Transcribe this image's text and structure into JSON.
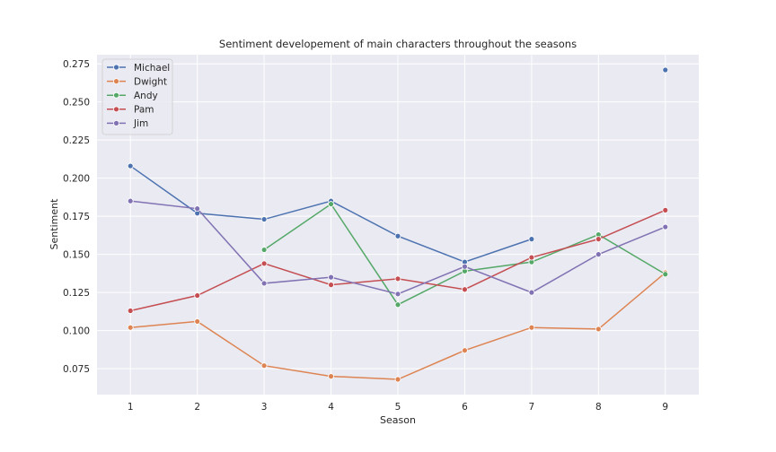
{
  "chart_data": {
    "type": "line",
    "title": "Sentiment developement of main characters throughout the seasons",
    "xlabel": "Season",
    "ylabel": "Sentiment",
    "x": [
      1,
      2,
      3,
      4,
      5,
      6,
      7,
      8,
      9
    ],
    "xlim": [
      0.5,
      9.5
    ],
    "ylim": [
      0.058,
      0.281
    ],
    "yticks": [
      "0.075",
      "0.100",
      "0.125",
      "0.150",
      "0.175",
      "0.200",
      "0.225",
      "0.250",
      "0.275"
    ],
    "ytick_values": [
      0.075,
      0.1,
      0.125,
      0.15,
      0.175,
      0.2,
      0.225,
      0.25,
      0.275
    ],
    "xticks": [
      "1",
      "2",
      "3",
      "4",
      "5",
      "6",
      "7",
      "8",
      "9"
    ],
    "grid": true,
    "legend_position": "top-left",
    "series": [
      {
        "name": "Michael",
        "color": "#4c72b0",
        "values": [
          0.208,
          0.177,
          0.173,
          0.185,
          0.162,
          0.145,
          0.16,
          null,
          0.271
        ]
      },
      {
        "name": "Dwight",
        "color": "#dd8452",
        "values": [
          0.102,
          0.106,
          0.077,
          0.07,
          0.068,
          0.087,
          0.102,
          0.101,
          0.138
        ]
      },
      {
        "name": "Andy",
        "color": "#55a868",
        "values": [
          null,
          null,
          0.153,
          0.183,
          0.117,
          0.139,
          0.145,
          0.163,
          0.137
        ]
      },
      {
        "name": "Pam",
        "color": "#c44e52",
        "values": [
          0.113,
          0.123,
          0.144,
          0.13,
          0.134,
          0.127,
          0.148,
          0.16,
          0.179
        ]
      },
      {
        "name": "Jim",
        "color": "#8172b3",
        "values": [
          0.185,
          0.18,
          0.131,
          0.135,
          0.124,
          0.142,
          0.125,
          0.15,
          0.168
        ]
      }
    ]
  }
}
